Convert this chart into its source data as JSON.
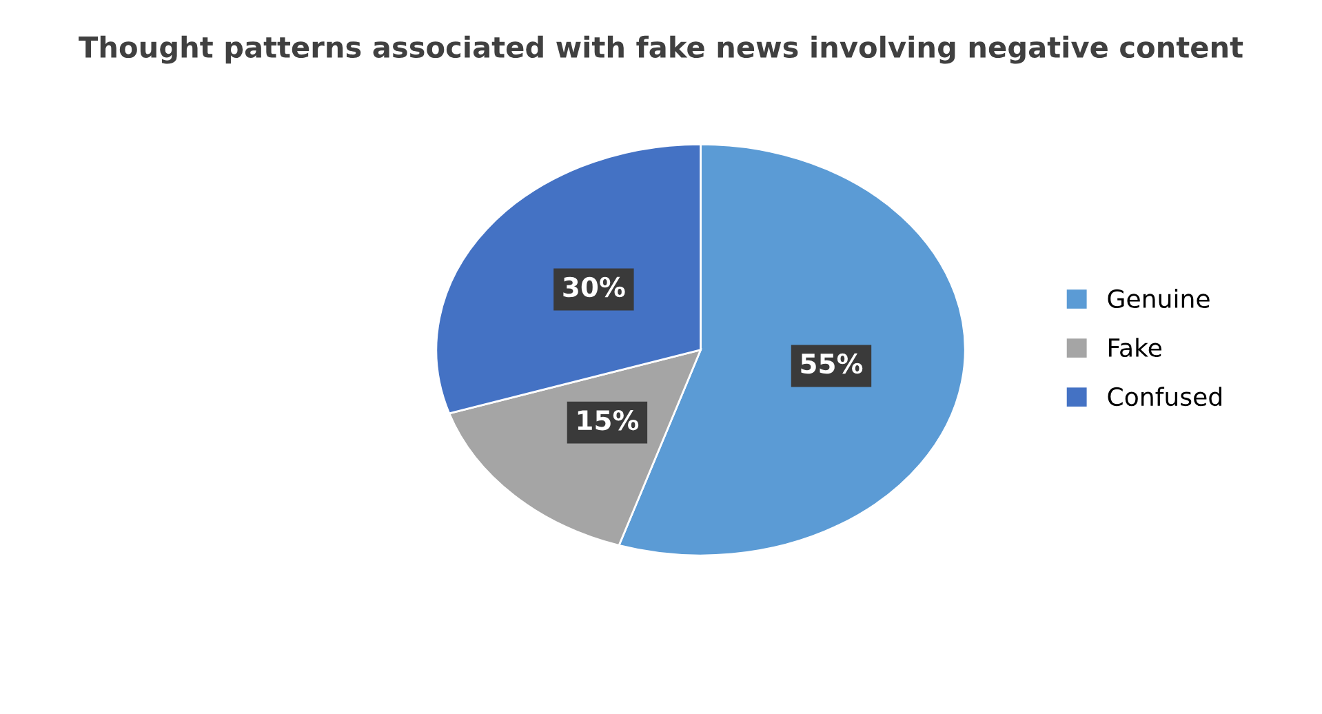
{
  "chart_data": {
    "type": "pie",
    "title": "Thought patterns associated with fake news involving negative content",
    "categories": [
      "Genuine",
      "Fake",
      "Confused"
    ],
    "values": [
      55,
      15,
      30
    ],
    "colors": [
      "#5b9bd5",
      "#a5a5a5",
      "#4472c4"
    ],
    "value_labels": [
      "55%",
      "15%",
      "30%"
    ],
    "legend": "right"
  }
}
